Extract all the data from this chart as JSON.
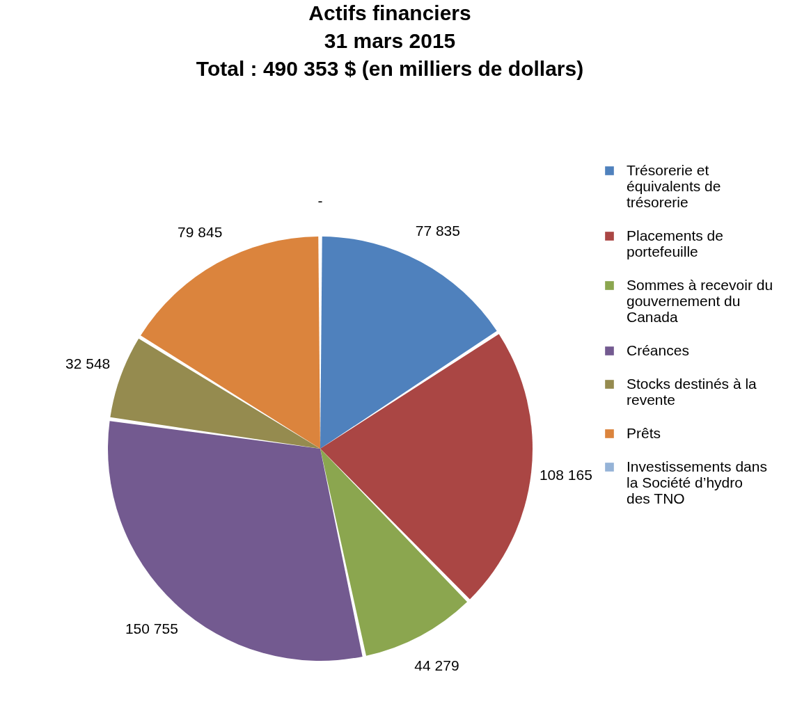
{
  "chart_data": {
    "type": "pie",
    "title": "Actifs financiers\n31 mars 2015\nTotal : 490 353 $ (en milliers de dollars)",
    "categories": [
      "Trésorerie et équivalents de trésorerie",
      "Placements de portefeuille",
      "Sommes à recevoir du gouvernement du Canada",
      "Créances",
      "Stocks destinés à la revente",
      "Prêts",
      "Investissements dans la Société d’hydro des TNO"
    ],
    "values": [
      77835,
      108165,
      44279,
      150755,
      32548,
      79845,
      0
    ],
    "value_labels": [
      "77 835",
      "108 165",
      "44 279",
      "150 755",
      "32 548",
      "79 845",
      "-"
    ],
    "colors": [
      "#4f81bd",
      "#aa4644",
      "#8ba64f",
      "#735a90",
      "#958b4f",
      "#db843d",
      "#95b3d7"
    ],
    "legend": "right"
  }
}
